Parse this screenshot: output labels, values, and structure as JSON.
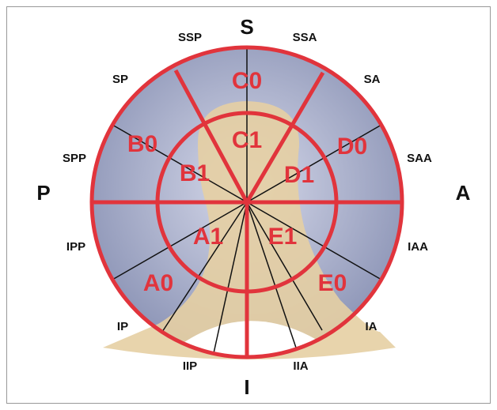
{
  "directions": {
    "S": "S",
    "I": "I",
    "P": "P",
    "A": "A"
  },
  "orientation_labels": [
    "SSP",
    "SSA",
    "SP",
    "SA",
    "SPP",
    "SAA",
    "IPP",
    "IAA",
    "IP",
    "IA",
    "IIP",
    "IIA"
  ],
  "segments": [
    "C0",
    "C1",
    "B0",
    "B1",
    "D0",
    "D1",
    "A1",
    "E1",
    "A0",
    "E0"
  ]
}
